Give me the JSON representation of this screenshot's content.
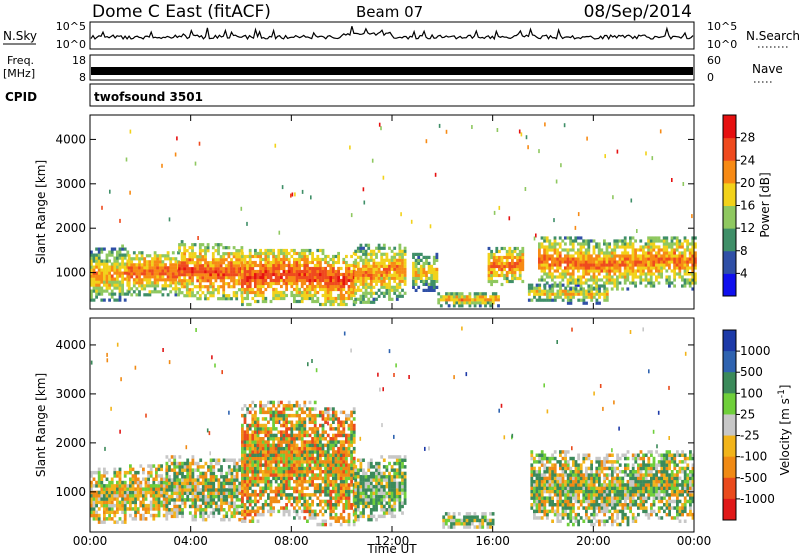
{
  "header": {
    "station": "Dome C East (fitACF)",
    "beam": "Beam 07",
    "date": "08/Sep/2014"
  },
  "summary_panels": {
    "nsky_label": "N.Sky",
    "nsearch_label": "N.Search",
    "noise_ticks_left": [
      "10^5",
      "10^0"
    ],
    "noise_ticks_right": [
      "10^5",
      "10^0"
    ],
    "freq_label": "Freq.",
    "freq_unit": "[MHz]",
    "freq_ticks": [
      "18",
      "8"
    ],
    "nave_label": "Nave",
    "nave_ticks": [
      "60",
      "0"
    ],
    "cpid_label": "CPID",
    "cpid_value": "twofsound 3501"
  },
  "chart_data": [
    {
      "type": "heatmap",
      "title": "",
      "xlabel": "",
      "ylabel": "Slant Range [km]",
      "x_ticks": [
        "00:00",
        "04:00",
        "08:00",
        "12:00",
        "16:00",
        "20:00",
        "00:00"
      ],
      "y_ticks": [
        1000,
        2000,
        3000,
        4000
      ],
      "xlim": [
        0,
        24
      ],
      "ylim": [
        180,
        4550
      ],
      "colorbar": {
        "label": "Power [dB]",
        "ticks": [
          "4",
          "8",
          "12",
          "16",
          "20",
          "24",
          "28"
        ],
        "range": [
          0,
          32
        ],
        "colors": [
          "#1010ee",
          "#2f4fa6",
          "#3f8f68",
          "#8fc860",
          "#f2d21a",
          "#f78a14",
          "#ef4a1e",
          "#e61010"
        ]
      },
      "bands": [
        {
          "t": [
            0.0,
            1.5
          ],
          "lo": 350,
          "hi": 1600,
          "level": 22
        },
        {
          "t": [
            1.5,
            3.5
          ],
          "lo": 400,
          "hi": 1450,
          "level": 25
        },
        {
          "t": [
            3.5,
            6.0
          ],
          "lo": 380,
          "hi": 1700,
          "level": 26
        },
        {
          "t": [
            6.0,
            10.5
          ],
          "lo": 250,
          "hi": 1500,
          "level": 27
        },
        {
          "t": [
            10.5,
            12.5
          ],
          "lo": 300,
          "hi": 1650,
          "level": 23
        },
        {
          "t": [
            12.8,
            13.8
          ],
          "lo": 500,
          "hi": 1400,
          "level": 20
        },
        {
          "t": [
            13.8,
            16.2
          ],
          "lo": 220,
          "hi": 550,
          "level": 22
        },
        {
          "t": [
            15.8,
            17.2
          ],
          "lo": 700,
          "hi": 1550,
          "level": 25
        },
        {
          "t": [
            17.4,
            20.5
          ],
          "lo": 280,
          "hi": 700,
          "level": 20
        },
        {
          "t": [
            17.8,
            24.0
          ],
          "lo": 600,
          "hi": 1800,
          "level": 24
        }
      ]
    },
    {
      "type": "heatmap",
      "title": "",
      "xlabel": "Time UT",
      "ylabel": "Slant Range [km]",
      "x_ticks": [
        "00:00",
        "04:00",
        "08:00",
        "12:00",
        "16:00",
        "20:00",
        "00:00"
      ],
      "y_ticks": [
        1000,
        2000,
        3000,
        4000
      ],
      "xlim": [
        0,
        24
      ],
      "ylim": [
        180,
        4550
      ],
      "colorbar": {
        "label": "Velocity [m s^-1]",
        "ticks": [
          "1000",
          "500",
          "100",
          "25",
          "-25",
          "-100",
          "-500",
          "-1000"
        ],
        "colors": [
          "#1d3aa8",
          "#2f63b0",
          "#3b8a5a",
          "#6fcf3a",
          "#c7c7c7",
          "#f2b41a",
          "#f08a14",
          "#ea4a1c",
          "#e01818"
        ]
      },
      "bands": [
        {
          "t": [
            0.0,
            3.0
          ],
          "lo": 350,
          "hi": 1500,
          "level": "mixed-orange"
        },
        {
          "t": [
            3.0,
            6.0
          ],
          "lo": 400,
          "hi": 1700,
          "level": "green-orange"
        },
        {
          "t": [
            6.0,
            10.5
          ],
          "lo": 300,
          "hi": 2800,
          "level": "orange"
        },
        {
          "t": [
            10.5,
            12.5
          ],
          "lo": 400,
          "hi": 1700,
          "level": "green"
        },
        {
          "t": [
            14.0,
            16.0
          ],
          "lo": 250,
          "hi": 550,
          "level": "green"
        },
        {
          "t": [
            17.5,
            24.0
          ],
          "lo": 300,
          "hi": 1800,
          "level": "green-orange"
        }
      ]
    }
  ]
}
